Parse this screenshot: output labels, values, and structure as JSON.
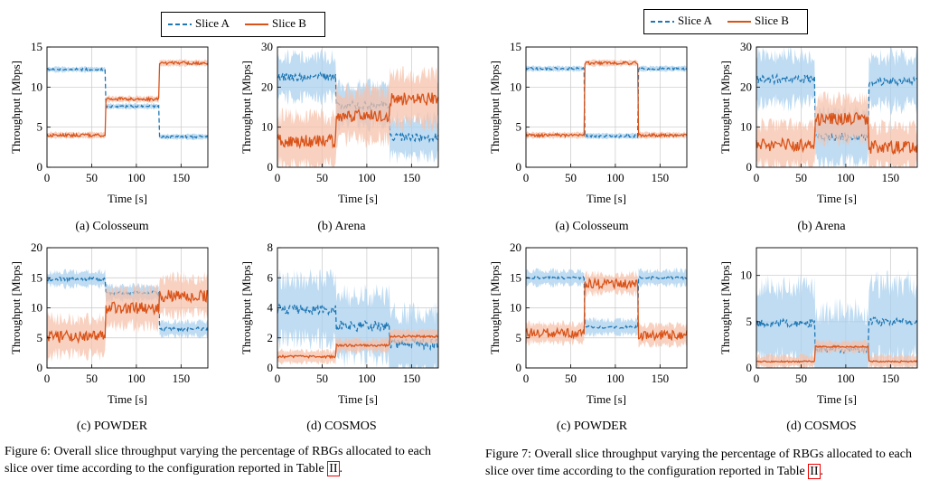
{
  "legend": {
    "slice_a": "Slice A",
    "slice_b": "Slice B"
  },
  "colors": {
    "slice_a": "#1f77b4",
    "slice_b": "#d95319",
    "slice_a_band": "#a9d0ee",
    "slice_b_band": "#f6c2ab",
    "grid": "#c8c8c8"
  },
  "figures": [
    {
      "id": "fig6",
      "caption_before_ref": "Figure 6: Overall slice throughput varying the percentage of RBGs allocated to each slice over time according to the configuration reported in Table ",
      "caption_ref": "II",
      "caption_after_ref": ".",
      "subcaptions": [
        "(a) Colosseum",
        "(b) Arena",
        "(c) POWDER",
        "(d) COSMOS"
      ]
    },
    {
      "id": "fig7",
      "caption_before_ref": "Figure 7: Overall slice throughput varying the percentage of RBGs allocated to each slice over time according to the configuration reported in Table ",
      "caption_ref": "II",
      "caption_after_ref": ".",
      "subcaptions": [
        "(a) Colosseum",
        "(b) Arena",
        "(c) POWDER",
        "(d) COSMOS"
      ]
    }
  ],
  "chart_data": [
    {
      "figure": "Figure 6",
      "panel": "(a) Colosseum",
      "type": "line",
      "xlabel": "Time [s]",
      "ylabel": "Throughput [Mbps]",
      "xlim": [
        0,
        180
      ],
      "ylim": [
        0,
        15
      ],
      "xticks": [
        0,
        50,
        100,
        150
      ],
      "yticks": [
        0,
        5,
        10,
        15
      ],
      "grid": true,
      "series": [
        {
          "name": "Slice A",
          "segments": [
            {
              "t": [
                0,
                65
              ],
              "mean": 12.2
            },
            {
              "t": [
                65,
                125
              ],
              "mean": 7.6
            },
            {
              "t": [
                125,
                180
              ],
              "mean": 3.8
            }
          ],
          "noise": 0.15,
          "band": 0.3
        },
        {
          "name": "Slice B",
          "segments": [
            {
              "t": [
                0,
                65
              ],
              "mean": 4.0
            },
            {
              "t": [
                65,
                125
              ],
              "mean": 8.5
            },
            {
              "t": [
                125,
                180
              ],
              "mean": 13.0
            }
          ],
          "noise": 0.2,
          "band": 0.35
        }
      ]
    },
    {
      "figure": "Figure 6",
      "panel": "(b) Arena",
      "type": "line",
      "xlabel": "Time [s]",
      "ylabel": "Throughput [Mbps]",
      "xlim": [
        0,
        180
      ],
      "ylim": [
        0,
        30
      ],
      "xticks": [
        0,
        50,
        100,
        150
      ],
      "yticks": [
        0,
        10,
        20,
        30
      ],
      "grid": true,
      "series": [
        {
          "name": "Slice A",
          "segments": [
            {
              "t": [
                0,
                65
              ],
              "mean": 22.5
            },
            {
              "t": [
                65,
                125
              ],
              "mean": 15.5
            },
            {
              "t": [
                125,
                180
              ],
              "mean": 7.5
            }
          ],
          "noise": 1.0,
          "band": 5.0
        },
        {
          "name": "Slice B",
          "segments": [
            {
              "t": [
                0,
                65
              ],
              "mean": 6.5
            },
            {
              "t": [
                65,
                125
              ],
              "mean": 13.0
            },
            {
              "t": [
                125,
                180
              ],
              "mean": 17.0
            }
          ],
          "noise": 1.6,
          "band": 6.0
        }
      ]
    },
    {
      "figure": "Figure 6",
      "panel": "(c) POWDER",
      "type": "line",
      "xlabel": "Time [s]",
      "ylabel": "Throughput [Mbps]",
      "xlim": [
        0,
        180
      ],
      "ylim": [
        0,
        20
      ],
      "xticks": [
        0,
        50,
        100,
        150
      ],
      "yticks": [
        0,
        5,
        10,
        15,
        20
      ],
      "grid": true,
      "series": [
        {
          "name": "Slice A",
          "segments": [
            {
              "t": [
                0,
                65
              ],
              "mean": 14.8
            },
            {
              "t": [
                65,
                125
              ],
              "mean": 12.5
            },
            {
              "t": [
                125,
                180
              ],
              "mean": 6.5
            }
          ],
          "noise": 0.3,
          "band": 1.2
        },
        {
          "name": "Slice B",
          "segments": [
            {
              "t": [
                0,
                65
              ],
              "mean": 5.2
            },
            {
              "t": [
                65,
                125
              ],
              "mean": 10.0
            },
            {
              "t": [
                125,
                180
              ],
              "mean": 12.0
            }
          ],
          "noise": 1.0,
          "band": 3.0
        }
      ]
    },
    {
      "figure": "Figure 6",
      "panel": "(d) COSMOS",
      "type": "line",
      "xlabel": "Time [s]",
      "ylabel": "Throughput [Mbps]",
      "xlim": [
        0,
        180
      ],
      "ylim": [
        0,
        8
      ],
      "xticks": [
        0,
        50,
        100,
        150
      ],
      "yticks": [
        0,
        2,
        4,
        6,
        8
      ],
      "grid": true,
      "series": [
        {
          "name": "Slice A",
          "segments": [
            {
              "t": [
                0,
                65
              ],
              "mean": 3.9
            },
            {
              "t": [
                65,
                125
              ],
              "mean": 2.8
            },
            {
              "t": [
                125,
                180
              ],
              "mean": 1.6
            }
          ],
          "noise": 0.35,
          "band": 2.0
        },
        {
          "name": "Slice B",
          "segments": [
            {
              "t": [
                0,
                65
              ],
              "mean": 0.75
            },
            {
              "t": [
                65,
                125
              ],
              "mean": 1.5
            },
            {
              "t": [
                125,
                180
              ],
              "mean": 2.1
            }
          ],
          "noise": 0.08,
          "band": 0.4
        }
      ]
    },
    {
      "figure": "Figure 7",
      "panel": "(a) Colosseum",
      "type": "line",
      "xlabel": "Time [s]",
      "ylabel": "Throughput [Mbps]",
      "xlim": [
        0,
        180
      ],
      "ylim": [
        0,
        15
      ],
      "xticks": [
        0,
        50,
        100,
        150
      ],
      "yticks": [
        0,
        5,
        10,
        15
      ],
      "grid": true,
      "series": [
        {
          "name": "Slice A",
          "segments": [
            {
              "t": [
                0,
                65
              ],
              "mean": 12.3
            },
            {
              "t": [
                65,
                125
              ],
              "mean": 3.9
            },
            {
              "t": [
                125,
                180
              ],
              "mean": 12.3
            }
          ],
          "noise": 0.15,
          "band": 0.3
        },
        {
          "name": "Slice B",
          "segments": [
            {
              "t": [
                0,
                65
              ],
              "mean": 4.0
            },
            {
              "t": [
                65,
                125
              ],
              "mean": 13.0
            },
            {
              "t": [
                125,
                180
              ],
              "mean": 4.0
            }
          ],
          "noise": 0.2,
          "band": 0.35
        }
      ]
    },
    {
      "figure": "Figure 7",
      "panel": "(b) Arena",
      "type": "line",
      "xlabel": "Time [s]",
      "ylabel": "Throughput [Mbps]",
      "xlim": [
        0,
        180
      ],
      "ylim": [
        0,
        30
      ],
      "xticks": [
        0,
        50,
        100,
        150
      ],
      "yticks": [
        0,
        10,
        20,
        30
      ],
      "grid": true,
      "series": [
        {
          "name": "Slice A",
          "segments": [
            {
              "t": [
                0,
                65
              ],
              "mean": 22.0
            },
            {
              "t": [
                65,
                125
              ],
              "mean": 7.5
            },
            {
              "t": [
                125,
                180
              ],
              "mean": 21.5
            }
          ],
          "noise": 1.0,
          "band": 6.0
        },
        {
          "name": "Slice B",
          "segments": [
            {
              "t": [
                0,
                65
              ],
              "mean": 5.5
            },
            {
              "t": [
                65,
                125
              ],
              "mean": 12.0
            },
            {
              "t": [
                125,
                180
              ],
              "mean": 5.0
            }
          ],
          "noise": 1.6,
          "band": 5.0
        }
      ]
    },
    {
      "figure": "Figure 7",
      "panel": "(c) POWDER",
      "type": "line",
      "xlabel": "Time [s]",
      "ylabel": "Throughput [Mbps]",
      "xlim": [
        0,
        180
      ],
      "ylim": [
        0,
        20
      ],
      "xticks": [
        0,
        50,
        100,
        150
      ],
      "yticks": [
        0,
        5,
        10,
        15,
        20
      ],
      "grid": true,
      "series": [
        {
          "name": "Slice A",
          "segments": [
            {
              "t": [
                0,
                65
              ],
              "mean": 15.0
            },
            {
              "t": [
                65,
                125
              ],
              "mean": 6.8
            },
            {
              "t": [
                125,
                180
              ],
              "mean": 15.0
            }
          ],
          "noise": 0.2,
          "band": 1.2
        },
        {
          "name": "Slice B",
          "segments": [
            {
              "t": [
                0,
                65
              ],
              "mean": 5.8
            },
            {
              "t": [
                65,
                125
              ],
              "mean": 14.0
            },
            {
              "t": [
                125,
                180
              ],
              "mean": 5.5
            }
          ],
          "noise": 0.8,
          "band": 1.6
        }
      ]
    },
    {
      "figure": "Figure 7",
      "panel": "(d) COSMOS",
      "type": "line",
      "xlabel": "Time [s]",
      "ylabel": "Throughput [Mbps]",
      "xlim": [
        0,
        180
      ],
      "ylim": [
        0,
        13
      ],
      "xticks": [
        0,
        50,
        100,
        150
      ],
      "yticks": [
        0,
        5,
        10
      ],
      "grid": true,
      "series": [
        {
          "name": "Slice A",
          "segments": [
            {
              "t": [
                0,
                65
              ],
              "mean": 4.8
            },
            {
              "t": [
                65,
                125
              ],
              "mean": 2.1
            },
            {
              "t": [
                125,
                180
              ],
              "mean": 5.0
            }
          ],
          "noise": 0.45,
          "band": 4.0
        },
        {
          "name": "Slice B",
          "segments": [
            {
              "t": [
                0,
                65
              ],
              "mean": 0.7
            },
            {
              "t": [
                65,
                125
              ],
              "mean": 2.3
            },
            {
              "t": [
                125,
                180
              ],
              "mean": 0.7
            }
          ],
          "noise": 0.08,
          "band": 0.6
        }
      ]
    }
  ]
}
